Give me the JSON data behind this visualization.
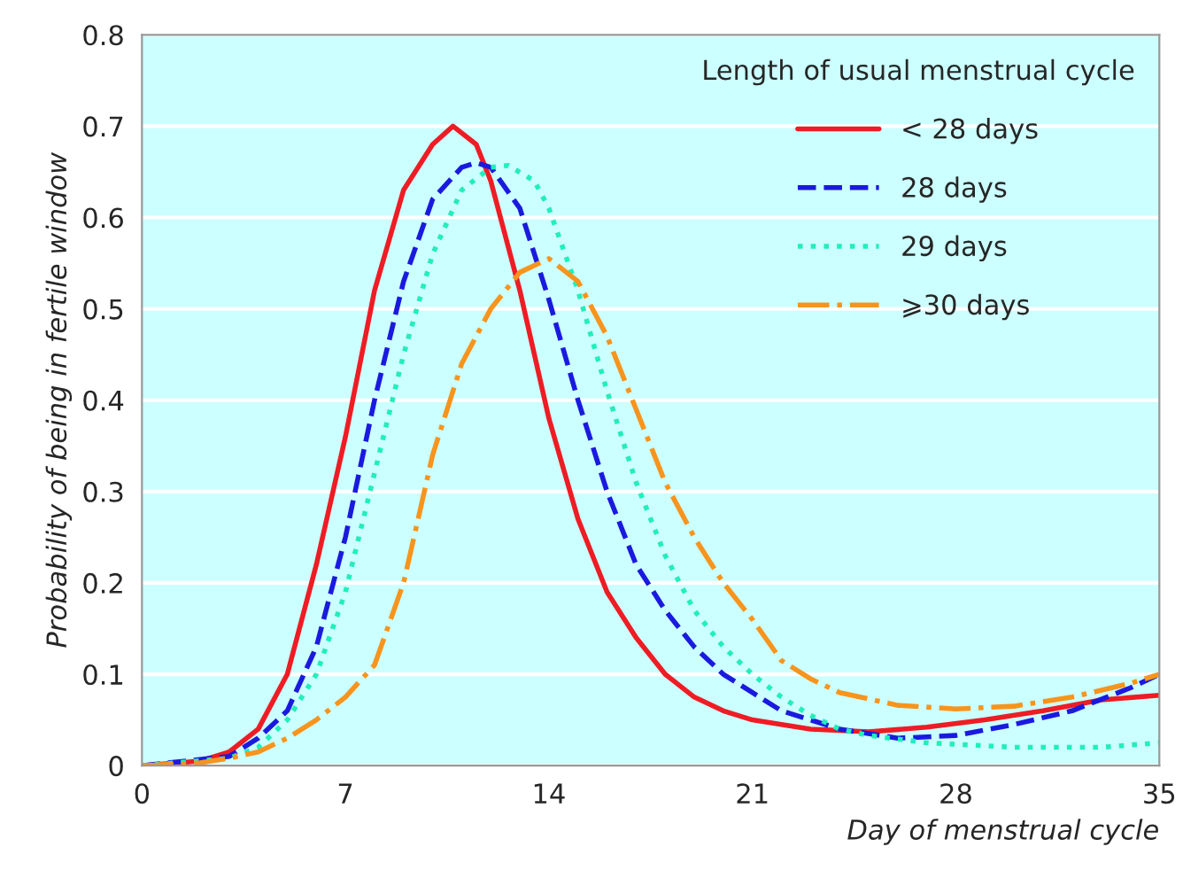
{
  "chart_data": {
    "type": "line",
    "xlabel": "Day of menstrual cycle",
    "ylabel": "Probability of being in fertile window",
    "legend_title": "Length of usual menstrual cycle",
    "legend": "top right",
    "grid": "y",
    "xlim": [
      0,
      35
    ],
    "xticks": [
      0,
      7,
      14,
      21,
      28,
      35
    ],
    "ylim": [
      0,
      0.8
    ],
    "yticks": [
      0,
      0.1,
      0.2,
      0.3,
      0.4,
      0.5,
      0.6,
      0.7,
      0.8
    ],
    "series": [
      {
        "name": "< 28 days",
        "color": "#ee1c24",
        "line_style": "solid",
        "x": [
          0,
          2,
          3,
          4,
          5,
          6,
          7,
          8,
          9,
          10,
          10.7,
          11.5,
          12,
          13,
          14,
          15,
          16,
          17,
          18,
          19,
          20,
          21,
          23,
          25,
          27,
          29,
          31,
          33,
          35
        ],
        "values": [
          0,
          0.005,
          0.015,
          0.04,
          0.1,
          0.22,
          0.36,
          0.52,
          0.63,
          0.68,
          0.7,
          0.68,
          0.64,
          0.52,
          0.38,
          0.27,
          0.19,
          0.14,
          0.1,
          0.075,
          0.06,
          0.05,
          0.04,
          0.037,
          0.042,
          0.05,
          0.06,
          0.072,
          0.077
        ]
      },
      {
        "name": "28 days",
        "color": "#1a1adf",
        "line_style": "dashed",
        "x": [
          0,
          3,
          4,
          5,
          6,
          7,
          8,
          9,
          10,
          11,
          11.5,
          12,
          13,
          14,
          15,
          16,
          17,
          18,
          19,
          20,
          21,
          22,
          23,
          24,
          26,
          28,
          30,
          32,
          34,
          35
        ],
        "values": [
          0,
          0.01,
          0.03,
          0.06,
          0.13,
          0.25,
          0.4,
          0.53,
          0.62,
          0.655,
          0.66,
          0.655,
          0.61,
          0.51,
          0.4,
          0.3,
          0.22,
          0.17,
          0.13,
          0.1,
          0.08,
          0.06,
          0.05,
          0.04,
          0.03,
          0.033,
          0.045,
          0.06,
          0.085,
          0.1
        ]
      },
      {
        "name": "29 days",
        "color": "#22eebb",
        "line_style": "dotted",
        "x": [
          0,
          3,
          4,
          5,
          6,
          7,
          8,
          9,
          10,
          11,
          12,
          12.6,
          13.5,
          14,
          15,
          16,
          17,
          18,
          19,
          20,
          21,
          22,
          23,
          24,
          25,
          27,
          30,
          33,
          35
        ],
        "values": [
          0,
          0.008,
          0.02,
          0.05,
          0.1,
          0.19,
          0.32,
          0.45,
          0.56,
          0.63,
          0.655,
          0.657,
          0.64,
          0.61,
          0.52,
          0.41,
          0.31,
          0.23,
          0.17,
          0.13,
          0.1,
          0.075,
          0.055,
          0.04,
          0.033,
          0.025,
          0.02,
          0.02,
          0.025
        ]
      },
      {
        "name": "⩾30 days",
        "color": "#f7941d",
        "line_style": "dashdot",
        "x": [
          0,
          2,
          3,
          4,
          5,
          6,
          7,
          8,
          9,
          10,
          11,
          12,
          13,
          14,
          15,
          16,
          17,
          18,
          19,
          20,
          21,
          22,
          23,
          24,
          26,
          28,
          30,
          32,
          34,
          35
        ],
        "values": [
          0,
          0.003,
          0.008,
          0.015,
          0.03,
          0.05,
          0.075,
          0.11,
          0.2,
          0.34,
          0.44,
          0.5,
          0.54,
          0.555,
          0.53,
          0.47,
          0.39,
          0.31,
          0.25,
          0.2,
          0.16,
          0.115,
          0.095,
          0.08,
          0.066,
          0.062,
          0.065,
          0.075,
          0.09,
          0.1
        ]
      }
    ]
  }
}
